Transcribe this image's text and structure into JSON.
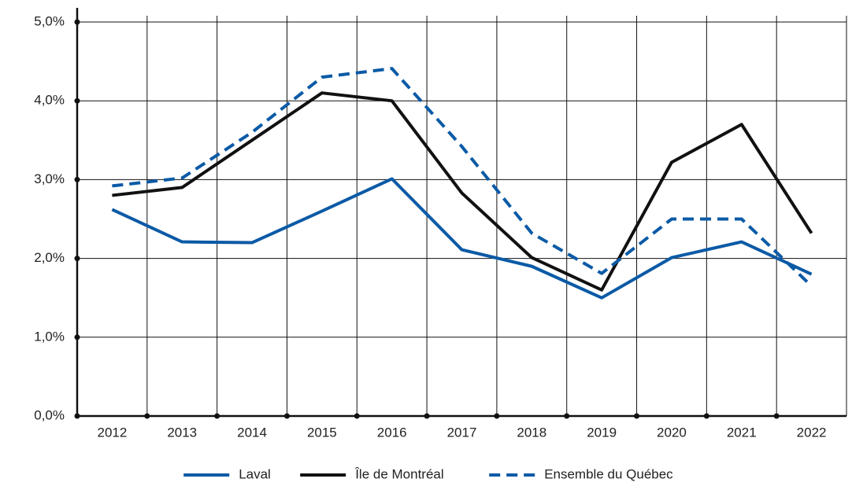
{
  "chart_data": {
    "type": "line",
    "categories": [
      "2012",
      "2013",
      "2014",
      "2015",
      "2016",
      "2017",
      "2018",
      "2019",
      "2020",
      "2021",
      "2022"
    ],
    "series": [
      {
        "name": "Laval",
        "color": "#0b5aa6",
        "dash": "solid",
        "values": [
          2.62,
          2.21,
          2.2,
          2.6,
          3.01,
          2.11,
          1.9,
          1.5,
          2.01,
          2.21,
          1.8
        ]
      },
      {
        "name": "Île de Montréal",
        "color": "#111111",
        "dash": "solid",
        "values": [
          2.8,
          2.9,
          3.5,
          4.1,
          4.0,
          2.83,
          2.01,
          1.6,
          3.22,
          3.7,
          2.32
        ]
      },
      {
        "name": "Ensemble du Québec",
        "color": "#0b5aa6",
        "dash": "dashed",
        "values": [
          2.92,
          3.02,
          3.6,
          4.3,
          4.41,
          3.42,
          2.32,
          1.81,
          2.5,
          2.5,
          1.65
        ]
      }
    ],
    "ylim": [
      0,
      5
    ],
    "yticks": [
      {
        "value": 0,
        "label": "0,0%"
      },
      {
        "value": 1,
        "label": "1,0%"
      },
      {
        "value": 2,
        "label": "2,0%"
      },
      {
        "value": 3,
        "label": "3,0%"
      },
      {
        "value": 4,
        "label": "4,0%"
      },
      {
        "value": 5,
        "label": "5,0%"
      }
    ],
    "grid": true,
    "legend": "bottom"
  }
}
